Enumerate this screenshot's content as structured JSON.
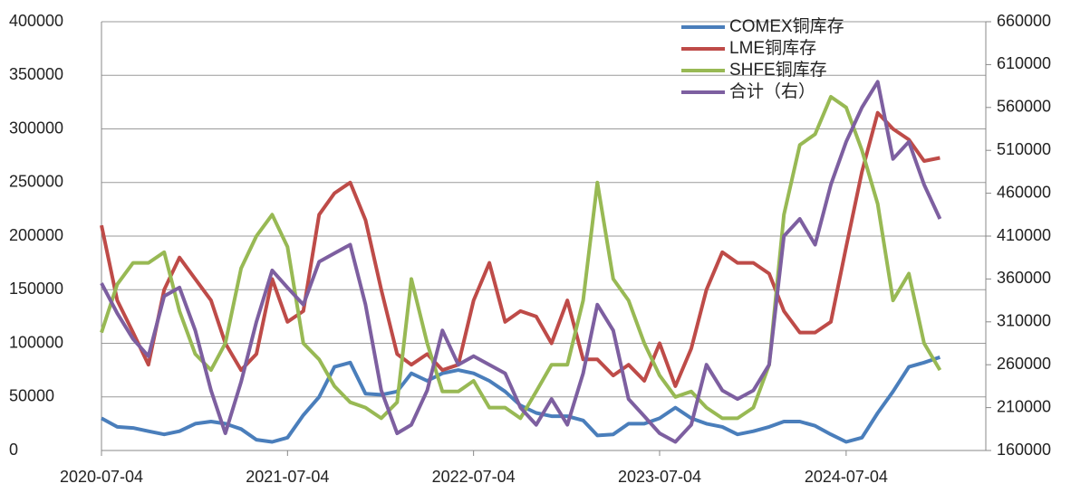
{
  "chart_data": {
    "type": "line",
    "x": [
      "2020-07-04",
      "2020-08-04",
      "2020-09-04",
      "2020-10-04",
      "2020-11-04",
      "2020-12-04",
      "2021-01-04",
      "2021-02-04",
      "2021-03-04",
      "2021-04-04",
      "2021-05-04",
      "2021-06-04",
      "2021-07-04",
      "2021-08-04",
      "2021-09-04",
      "2021-10-04",
      "2021-11-04",
      "2021-12-04",
      "2022-01-04",
      "2022-02-04",
      "2022-03-04",
      "2022-04-04",
      "2022-05-04",
      "2022-06-04",
      "2022-07-04",
      "2022-08-04",
      "2022-09-04",
      "2022-10-04",
      "2022-11-04",
      "2022-12-04",
      "2023-01-04",
      "2023-02-04",
      "2023-03-04",
      "2023-04-04",
      "2023-05-04",
      "2023-06-04",
      "2023-07-04",
      "2023-08-04",
      "2023-09-04",
      "2023-10-04",
      "2023-11-04",
      "2023-12-04",
      "2024-01-04",
      "2024-02-04",
      "2024-03-04",
      "2024-04-04",
      "2024-05-04",
      "2024-06-04",
      "2024-07-04",
      "2024-08-04",
      "2024-09-04",
      "2024-10-04",
      "2024-11-04",
      "2024-12-04",
      "2025-01-04"
    ],
    "series": [
      {
        "name": "COMEX铜库存",
        "color": "#4a7ebb",
        "values": [
          30000,
          22000,
          21000,
          18000,
          15000,
          18000,
          25000,
          27000,
          25000,
          20000,
          10000,
          8000,
          12000,
          33000,
          50000,
          78000,
          82000,
          53000,
          52000,
          55000,
          72000,
          65000,
          72000,
          75000,
          72000,
          65000,
          55000,
          42000,
          35000,
          32000,
          32000,
          28000,
          14000,
          15000,
          25000,
          25000,
          30000,
          40000,
          30000,
          25000,
          22000,
          15000,
          18000,
          22000,
          27000,
          27000,
          23000,
          15000,
          8000,
          12000,
          35000,
          55000,
          78000,
          82000,
          87000
        ]
      },
      {
        "name": "LME铜库存",
        "color": "#be4b48",
        "values": [
          210000,
          140000,
          110000,
          80000,
          150000,
          180000,
          160000,
          140000,
          100000,
          75000,
          90000,
          160000,
          120000,
          130000,
          220000,
          240000,
          250000,
          215000,
          150000,
          90000,
          80000,
          90000,
          75000,
          80000,
          140000,
          175000,
          120000,
          130000,
          125000,
          100000,
          140000,
          85000,
          85000,
          70000,
          80000,
          65000,
          100000,
          60000,
          95000,
          150000,
          185000,
          175000,
          175000,
          165000,
          130000,
          110000,
          110000,
          120000,
          190000,
          260000,
          315000,
          300000,
          290000,
          270000,
          273000
        ]
      },
      {
        "name": "SHFE铜库存",
        "color": "#98b954",
        "values": [
          110000,
          155000,
          175000,
          175000,
          185000,
          130000,
          90000,
          75000,
          100000,
          170000,
          200000,
          220000,
          190000,
          100000,
          85000,
          60000,
          45000,
          40000,
          30000,
          45000,
          160000,
          100000,
          55000,
          55000,
          65000,
          40000,
          40000,
          30000,
          55000,
          80000,
          80000,
          140000,
          250000,
          160000,
          140000,
          100000,
          70000,
          50000,
          55000,
          40000,
          30000,
          30000,
          40000,
          80000,
          220000,
          285000,
          295000,
          330000,
          320000,
          280000,
          230000,
          140000,
          165000,
          100000,
          75000
        ]
      },
      {
        "name": "合计（右）",
        "color": "#7d5fa0",
        "axis": "y2",
        "values": [
          355000,
          320000,
          290000,
          270000,
          340000,
          350000,
          300000,
          230000,
          180000,
          240000,
          310000,
          370000,
          350000,
          330000,
          380000,
          390000,
          400000,
          330000,
          230000,
          180000,
          190000,
          230000,
          300000,
          260000,
          270000,
          260000,
          250000,
          210000,
          190000,
          220000,
          190000,
          250000,
          330000,
          300000,
          220000,
          200000,
          180000,
          170000,
          190000,
          260000,
          230000,
          220000,
          230000,
          260000,
          410000,
          430000,
          400000,
          470000,
          520000,
          560000,
          590000,
          500000,
          520000,
          470000,
          430000
        ]
      }
    ],
    "xlim": [
      "2020-07-04",
      "2025-04-04"
    ],
    "xticks": [
      "2020-07-04",
      "2021-07-04",
      "2022-07-04",
      "2023-07-04",
      "2024-07-04"
    ],
    "ylim": [
      0,
      400000
    ],
    "yticks": [
      0,
      50000,
      100000,
      150000,
      200000,
      250000,
      300000,
      350000,
      400000
    ],
    "y2lim": [
      160000,
      660000
    ],
    "y2ticks": [
      160000,
      210000,
      260000,
      310000,
      360000,
      410000,
      460000,
      510000,
      560000,
      610000,
      660000
    ],
    "grid": true
  }
}
